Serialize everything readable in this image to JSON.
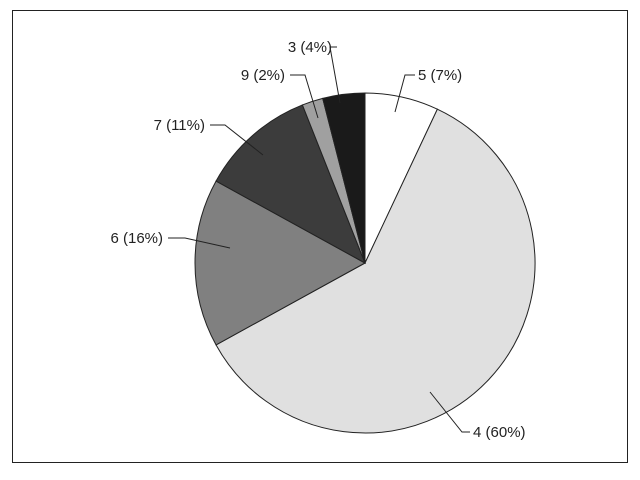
{
  "chart_data": {
    "type": "pie",
    "title": "",
    "start": "top",
    "direction": "clockwise",
    "slices": [
      {
        "label": "5 (7%)",
        "category": "5",
        "value": 7,
        "color": "#ffffff"
      },
      {
        "label": "4 (60%)",
        "category": "4",
        "value": 60,
        "color": "#e0e0e0"
      },
      {
        "label": "6 (16%)",
        "category": "6",
        "value": 16,
        "color": "#808080"
      },
      {
        "label": "7 (11%)",
        "category": "7",
        "value": 11,
        "color": "#3c3c3c"
      },
      {
        "label": "9 (2%)",
        "category": "9",
        "value": 2,
        "color": "#a0a0a0"
      },
      {
        "label": "3 (4%)",
        "category": "3",
        "value": 4,
        "color": "#1a1a1a"
      }
    ],
    "legend": "none"
  }
}
